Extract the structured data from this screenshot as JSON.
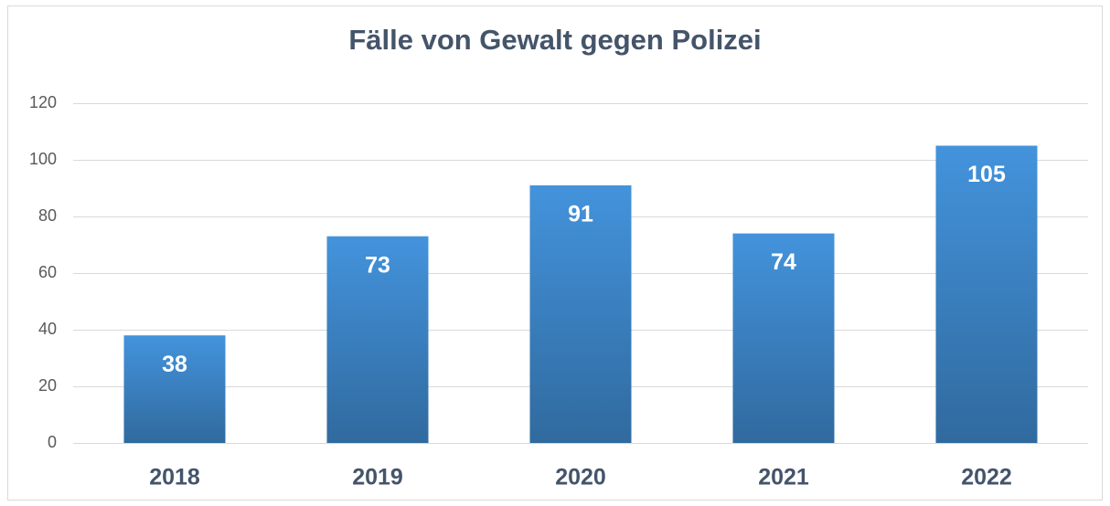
{
  "chart_data": {
    "type": "bar",
    "title": "Fälle von Gewalt gegen Polizei",
    "categories": [
      "2018",
      "2019",
      "2020",
      "2021",
      "2022"
    ],
    "values": [
      38,
      73,
      91,
      74,
      105
    ],
    "color": "#4393dc",
    "ylim": [
      0,
      120
    ],
    "yticks": [
      0,
      20,
      40,
      60,
      80,
      100,
      120
    ],
    "grid": true
  }
}
